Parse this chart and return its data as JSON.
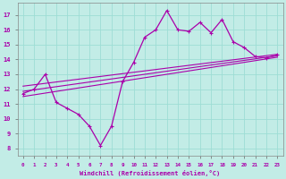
{
  "xlabel": "Windchill (Refroidissement éolien,°C)",
  "ylabel": "",
  "xlim": [
    -0.5,
    23.5
  ],
  "ylim": [
    7.5,
    17.8
  ],
  "xticks": [
    0,
    1,
    2,
    3,
    4,
    5,
    6,
    7,
    8,
    9,
    10,
    11,
    12,
    13,
    14,
    15,
    16,
    17,
    18,
    19,
    20,
    21,
    22,
    23
  ],
  "yticks": [
    8,
    9,
    10,
    11,
    12,
    13,
    14,
    15,
    16,
    17
  ],
  "bg_color": "#c2ece6",
  "grid_color": "#9dddd5",
  "line_color": "#aa00aa",
  "line1_x": [
    0,
    1,
    2,
    3,
    4,
    5,
    6,
    7,
    8,
    9,
    10,
    11,
    12,
    13,
    14,
    15,
    16,
    17,
    18,
    19,
    20,
    21,
    22,
    23
  ],
  "line1_y": [
    11.7,
    12.0,
    13.0,
    11.1,
    10.7,
    10.3,
    9.5,
    8.2,
    9.5,
    12.5,
    13.8,
    15.5,
    16.0,
    17.3,
    16.0,
    15.9,
    16.5,
    15.8,
    16.7,
    15.2,
    14.8,
    14.2,
    14.1,
    14.3
  ],
  "line2_x": [
    0,
    23
  ],
  "line2_y": [
    11.5,
    14.15
  ],
  "line3_x": [
    0,
    23
  ],
  "line3_y": [
    11.85,
    14.25
  ],
  "line4_x": [
    0,
    23
  ],
  "line4_y": [
    12.2,
    14.35
  ]
}
